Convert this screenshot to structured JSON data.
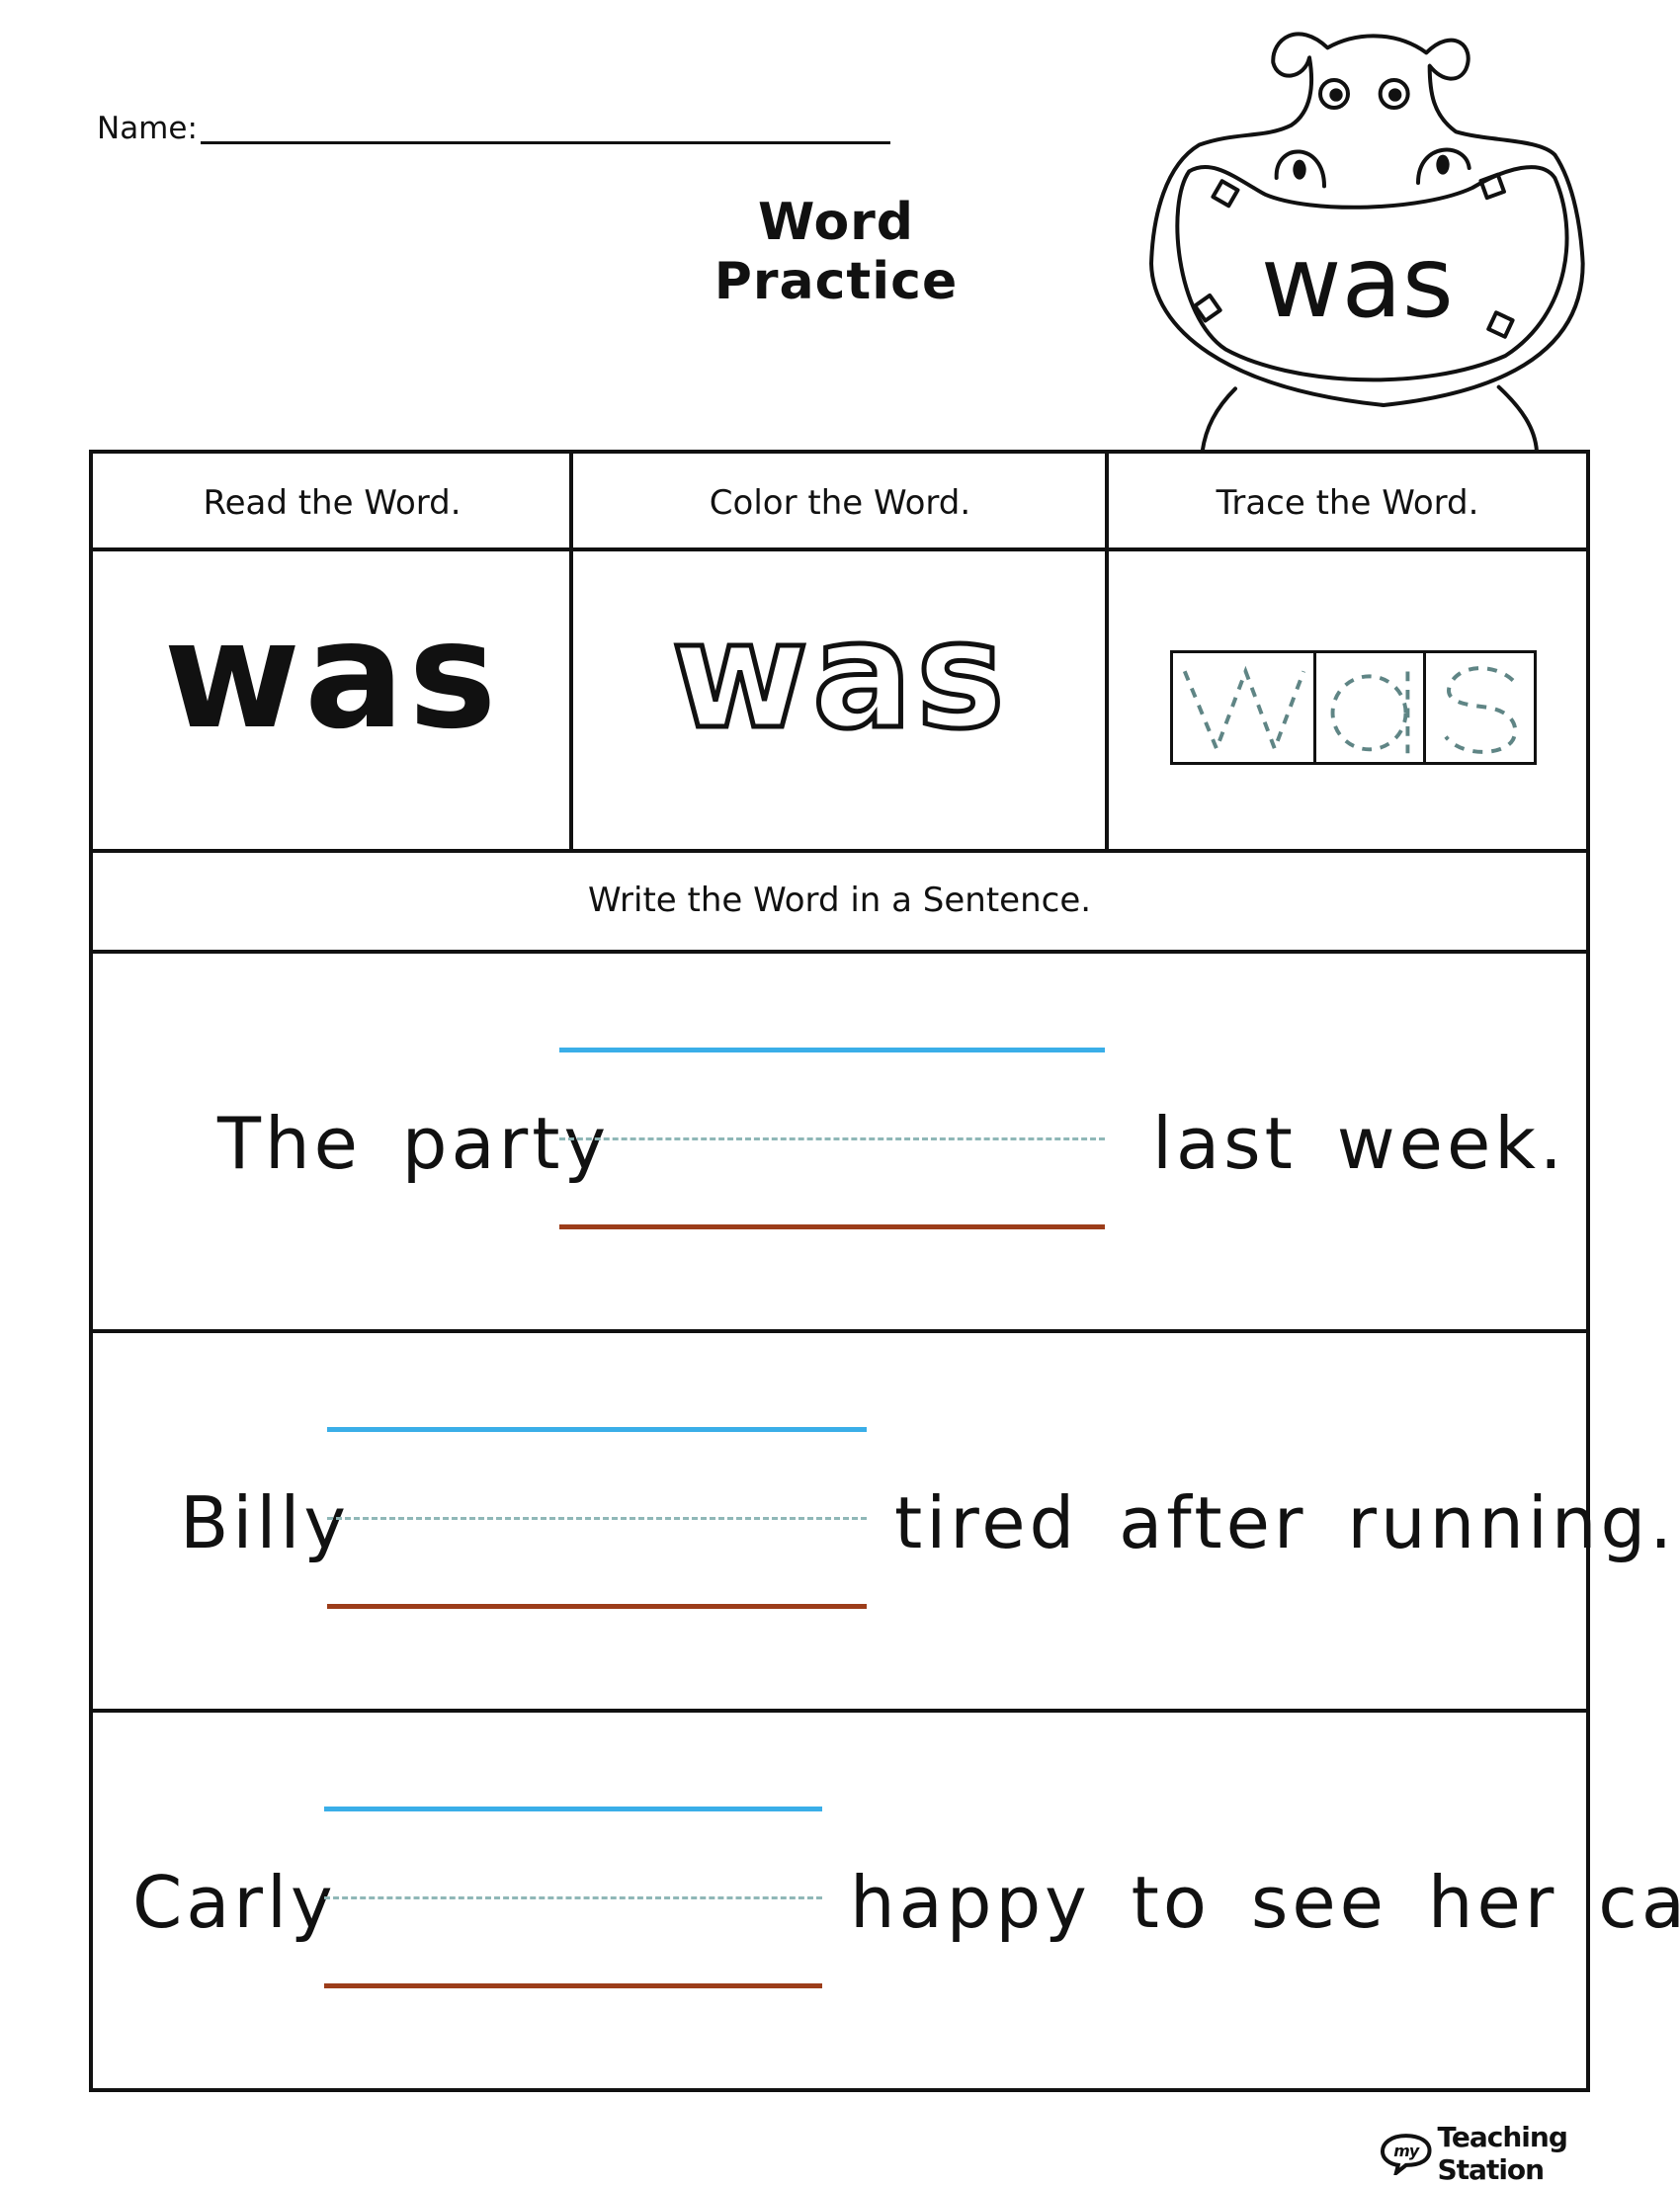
{
  "header": {
    "name_label": "Name:",
    "title": "Word Practice",
    "sight_word": "was"
  },
  "table": {
    "columns": [
      "Read the Word.",
      "Color the Word.",
      "Trace the Word."
    ],
    "read_word": "was",
    "color_word": "was",
    "trace_letters": [
      "w",
      "a",
      "s"
    ],
    "sentence_header": "Write the Word in a Sentence.",
    "sentences": [
      {
        "before": "The party",
        "after": "last week."
      },
      {
        "before": "Billy",
        "after": "tired after running."
      },
      {
        "before": "Carly",
        "after": "happy to see her cat."
      }
    ]
  },
  "colors": {
    "top_line": "#3aaee8",
    "mid_dashed_line": "#8fb7b7",
    "base_line": "#9c3d1a",
    "trace_dash": "#5f8585"
  },
  "footer": {
    "logo_text": "Teaching Station",
    "logo_badge": "my"
  }
}
